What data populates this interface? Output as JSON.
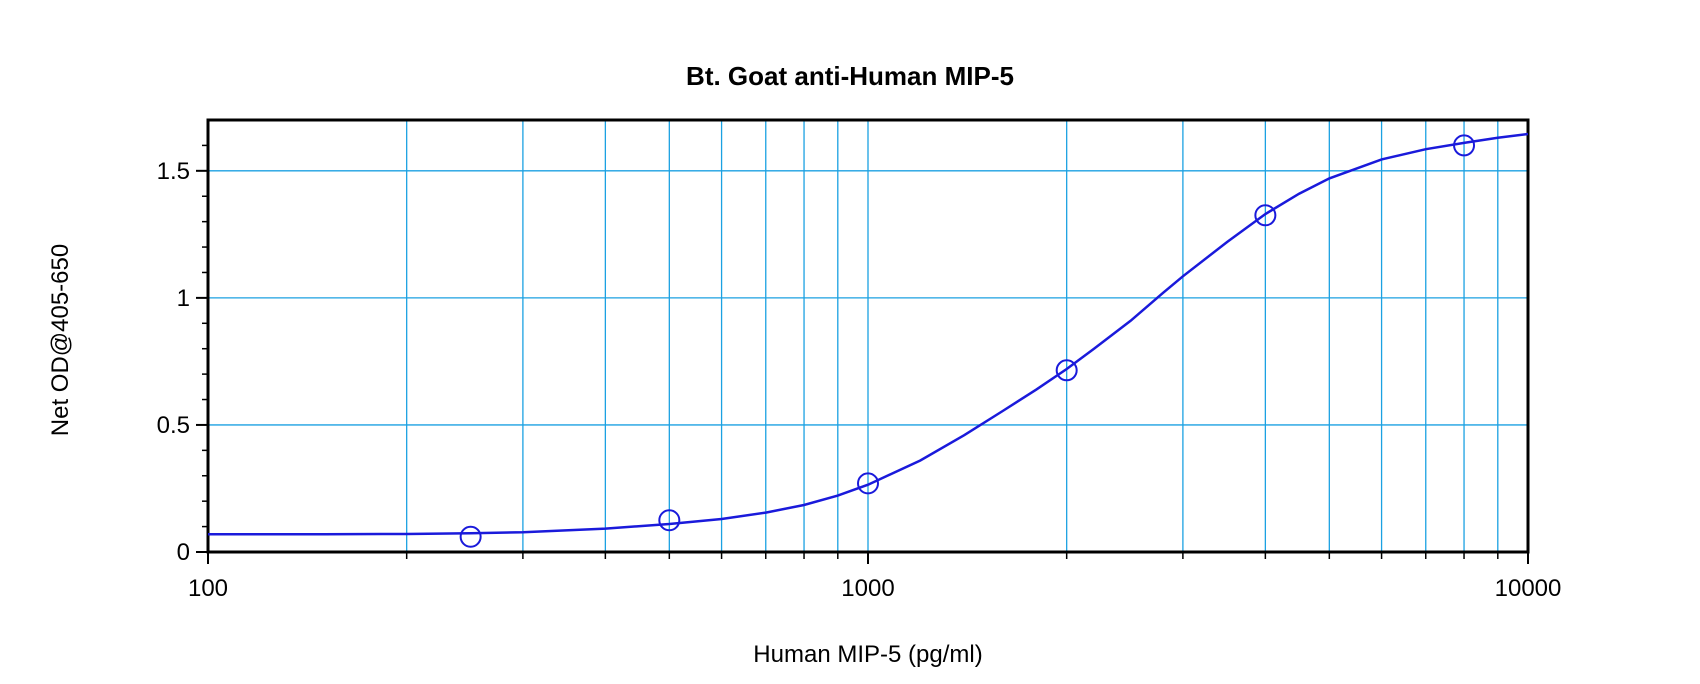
{
  "chart_data": {
    "type": "scatter",
    "title": "Bt. Goat anti-Human MIP-5",
    "xlabel": "Human MIP-5 (pg/ml)",
    "ylabel": "Net OD@405-650",
    "x_scale": "log",
    "xlim": [
      100,
      10000
    ],
    "ylim": [
      0,
      1.7
    ],
    "x_ticks": [
      100,
      1000,
      10000
    ],
    "x_tick_labels": [
      "100",
      "1000",
      "10000"
    ],
    "y_ticks": [
      0,
      0.5,
      1,
      1.5
    ],
    "y_tick_labels": [
      "0",
      "0.5",
      "1",
      "1.5"
    ],
    "grid": true,
    "legend": "none",
    "colors": {
      "grid": "#1ba1e2",
      "series": "#1a1adb",
      "axis": "#000000"
    },
    "series": [
      {
        "marker": "open-circle",
        "points": [
          {
            "x": 250,
            "y": 0.06
          },
          {
            "x": 500,
            "y": 0.125
          },
          {
            "x": 1000,
            "y": 0.27
          },
          {
            "x": 2000,
            "y": 0.715
          },
          {
            "x": 4000,
            "y": 1.325
          },
          {
            "x": 8000,
            "y": 1.6
          }
        ],
        "fit_curve": {
          "x": [
            100,
            150,
            200,
            250,
            300,
            400,
            500,
            600,
            700,
            800,
            900,
            1000,
            1200,
            1400,
            1600,
            1800,
            2000,
            2200,
            2500,
            2800,
            3000,
            3500,
            4000,
            4500,
            5000,
            6000,
            7000,
            8000,
            9000,
            10000
          ],
          "y": [
            0.07,
            0.07,
            0.071,
            0.074,
            0.078,
            0.092,
            0.11,
            0.13,
            0.155,
            0.185,
            0.222,
            0.265,
            0.36,
            0.46,
            0.555,
            0.64,
            0.72,
            0.8,
            0.91,
            1.02,
            1.085,
            1.22,
            1.33,
            1.41,
            1.47,
            1.545,
            1.585,
            1.61,
            1.63,
            1.645
          ]
        }
      }
    ]
  }
}
